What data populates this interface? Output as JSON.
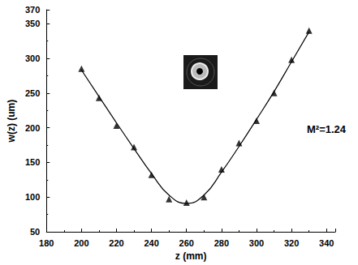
{
  "chart_data": {
    "type": "line",
    "x_label": "z (mm)",
    "y_label": "w(z) (um)",
    "annotation": "M²=1.24",
    "x": [
      200,
      210,
      220,
      230,
      240,
      250,
      260,
      270,
      280,
      290,
      300,
      310,
      320,
      330
    ],
    "series": [
      {
        "type": "scatter",
        "color": "#000000",
        "marker": "triangle",
        "values": [
          285,
          243,
          203,
          172,
          132,
          97,
          92,
          100,
          140,
          178,
          210,
          250,
          298,
          340
        ]
      },
      {
        "type": "line",
        "color": "#000000",
        "line_style": "solid",
        "values": [
          283,
          245,
          207,
          170,
          134,
          103,
          91,
          103,
          136,
          173,
          212,
          252,
          295,
          338
        ]
      }
    ],
    "xlim": [
      180,
      345
    ],
    "xticks": [
      180,
      200,
      220,
      240,
      260,
      280,
      300,
      320,
      340
    ],
    "ylim": [
      50,
      370
    ],
    "yticks": [
      50,
      100,
      150,
      200,
      250,
      300,
      350
    ],
    "grid": false
  }
}
